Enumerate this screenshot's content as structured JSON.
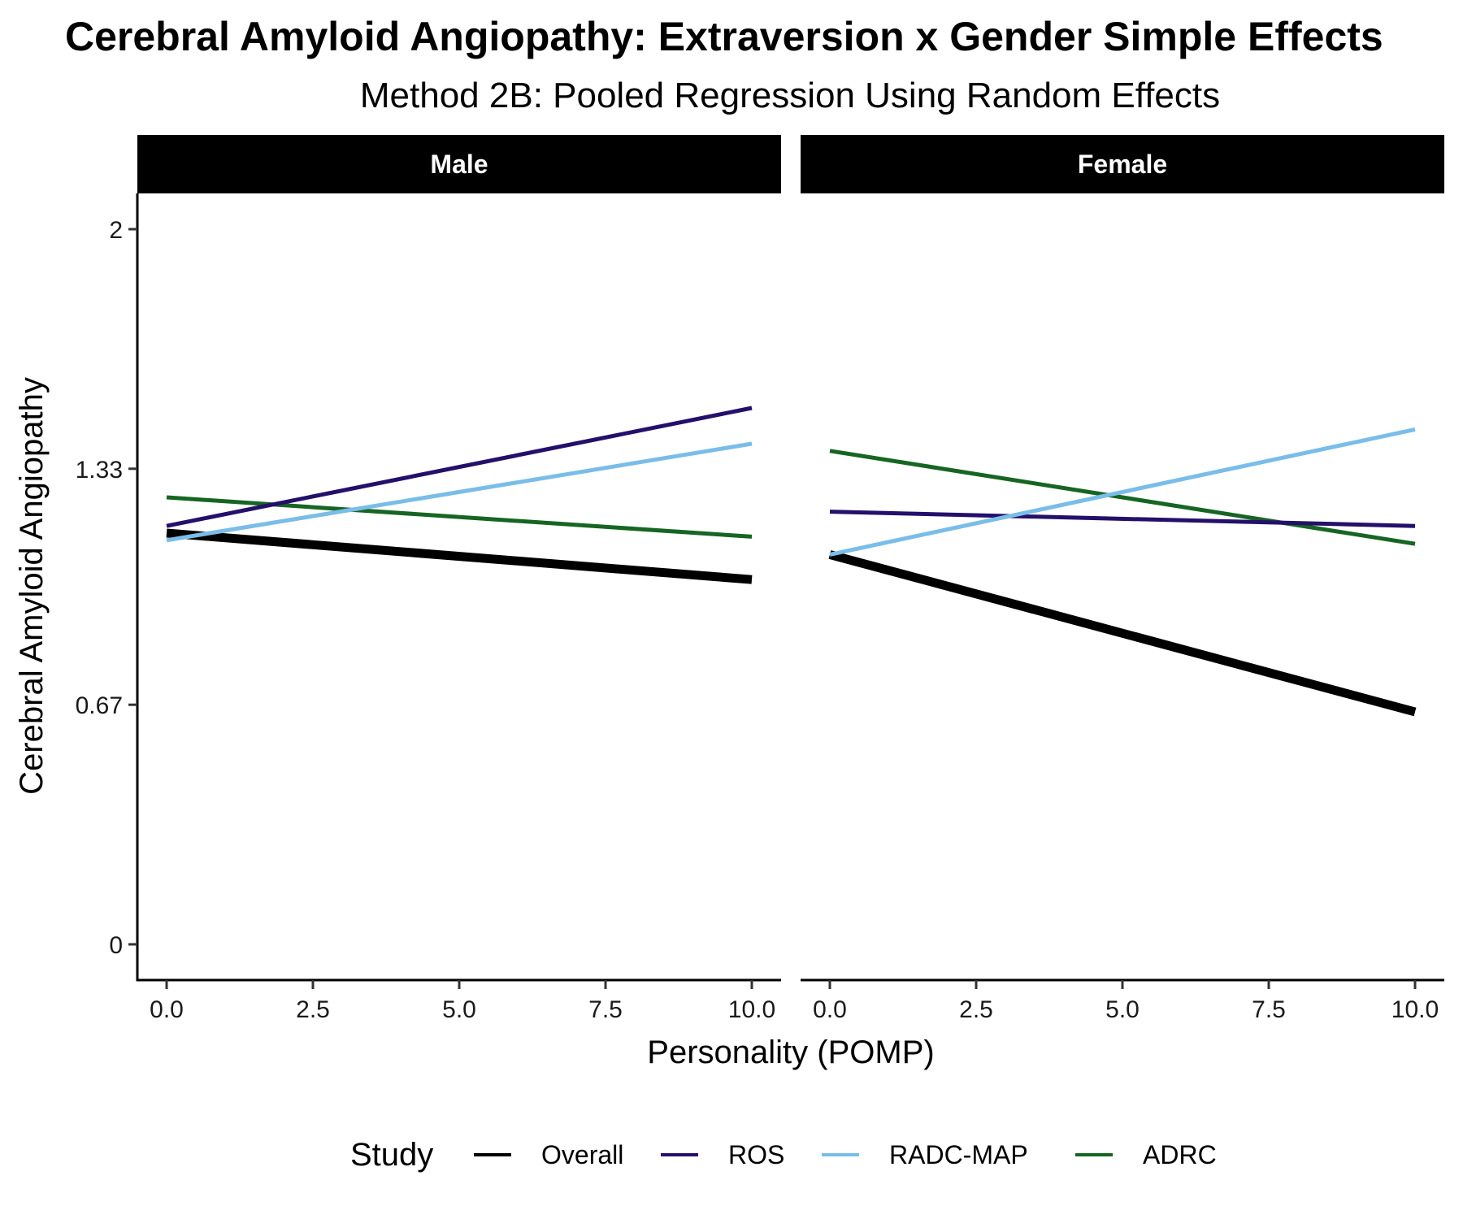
{
  "chart_data": {
    "type": "line",
    "title": "Cerebral Amyloid Angiopathy: Extraversion x Gender Simple Effects",
    "subtitle": "Method 2B: Pooled Regression Using Random Effects",
    "xlabel": "Personality (POMP)",
    "ylabel": "Cerebral Amyloid Angiopathy",
    "xlim": [
      -0.5,
      10.5
    ],
    "ylim": [
      -0.1,
      2.1
    ],
    "x_ticks": [
      0,
      2.5,
      5,
      7.5,
      10
    ],
    "x_tick_labels": [
      "0.0",
      "2.5",
      "5.0",
      "7.5",
      "10.0"
    ],
    "y_ticks": [
      0,
      0.67,
      1.33,
      2
    ],
    "y_tick_labels": [
      "0",
      "0.67",
      "1.33",
      "2"
    ],
    "grid": false,
    "legend": {
      "title": "Study",
      "position": "bottom",
      "entries": [
        "Overall",
        "ROS",
        "RADC-MAP",
        "ADRC"
      ]
    },
    "colors": {
      "Overall": "#000000",
      "ROS": "#24106b",
      "RADC-MAP": "#79bde8",
      "ADRC": "#166523"
    },
    "panels": [
      {
        "label": "Male",
        "series": [
          {
            "name": "Overall",
            "x": [
              0,
              10
            ],
            "y": [
              1.15,
              1.02
            ]
          },
          {
            "name": "ROS",
            "x": [
              0,
              10
            ],
            "y": [
              1.17,
              1.5
            ]
          },
          {
            "name": "RADC-MAP",
            "x": [
              0,
              10
            ],
            "y": [
              1.13,
              1.4
            ]
          },
          {
            "name": "ADRC",
            "x": [
              0,
              10
            ],
            "y": [
              1.25,
              1.14
            ]
          }
        ]
      },
      {
        "label": "Female",
        "series": [
          {
            "name": "Overall",
            "x": [
              0,
              10
            ],
            "y": [
              1.09,
              0.65
            ]
          },
          {
            "name": "ROS",
            "x": [
              0,
              10
            ],
            "y": [
              1.21,
              1.17
            ]
          },
          {
            "name": "RADC-MAP",
            "x": [
              0,
              10
            ],
            "y": [
              1.09,
              1.44
            ]
          },
          {
            "name": "ADRC",
            "x": [
              0,
              10
            ],
            "y": [
              1.38,
              1.12
            ]
          }
        ]
      }
    ]
  }
}
